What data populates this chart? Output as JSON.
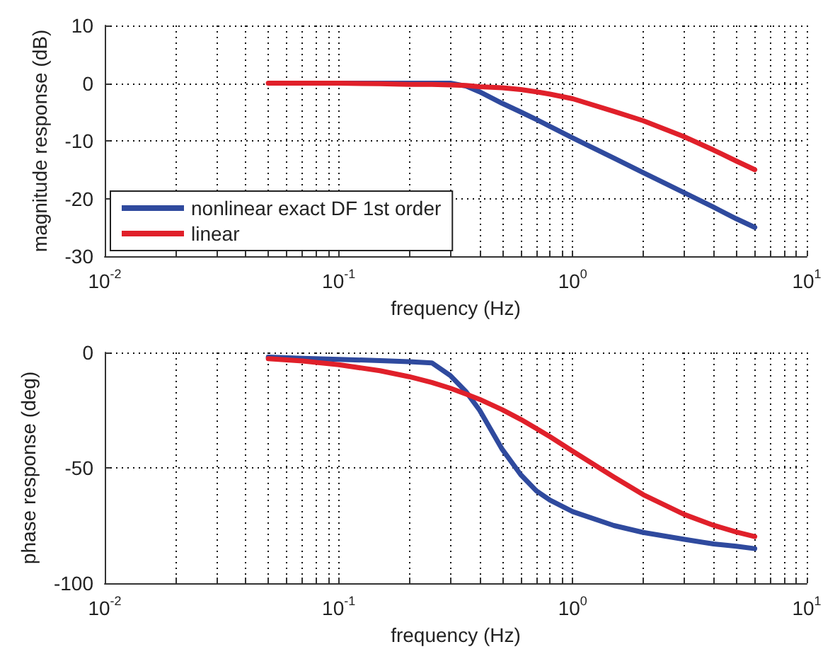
{
  "chart_data": [
    {
      "type": "line",
      "xlabel": "frequency (Hz)",
      "ylabel": "magnitude response (dB)",
      "log": "x",
      "grid": true,
      "legend": "bottom left",
      "line_style": "solid",
      "marker": "none",
      "xlim": [
        0.01,
        10
      ],
      "ylim": [
        -30,
        10
      ],
      "yticks": [
        -30,
        -20,
        -10,
        0,
        10
      ],
      "xticks": [
        {
          "value": 0.01,
          "label": "10$^{-2}$"
        },
        {
          "value": 0.02,
          "label": null
        },
        {
          "value": 0.03,
          "label": null
        },
        {
          "value": 0.04,
          "label": null
        },
        {
          "value": 0.05,
          "label": null
        },
        {
          "value": 0.06,
          "label": null
        },
        {
          "value": 0.07,
          "label": null
        },
        {
          "value": 0.08,
          "label": null
        },
        {
          "value": 0.09,
          "label": null
        },
        {
          "value": 0.1,
          "label": "10$^{-1}$"
        },
        {
          "value": 0.2,
          "label": null
        },
        {
          "value": 0.3,
          "label": null
        },
        {
          "value": 0.4,
          "label": null
        },
        {
          "value": 0.5,
          "label": null
        },
        {
          "value": 0.6,
          "label": null
        },
        {
          "value": 0.7,
          "label": null
        },
        {
          "value": 0.8,
          "label": null
        },
        {
          "value": 0.9,
          "label": null
        },
        {
          "value": 1,
          "label": "10$^{0}$"
        },
        {
          "value": 2,
          "label": null
        },
        {
          "value": 3,
          "label": null
        },
        {
          "value": 4,
          "label": null
        },
        {
          "value": 5,
          "label": null
        },
        {
          "value": 6,
          "label": null
        },
        {
          "value": 7,
          "label": null
        },
        {
          "value": 8,
          "label": null
        },
        {
          "value": 9,
          "label": null
        },
        {
          "value": 10,
          "label": "10$^{1}$"
        }
      ],
      "x": [
        0.05,
        0.07,
        0.1,
        0.15,
        0.2,
        0.25,
        0.3,
        0.35,
        0.4,
        0.5,
        0.6,
        0.7,
        0.8,
        1,
        1.5,
        2,
        3,
        4,
        5,
        6
      ],
      "series": [
        {
          "name": "nonlinear exact DF 1st order",
          "color": "#2f4a9e",
          "values": [
            null,
            null,
            0,
            0,
            0,
            0,
            0,
            -0.5,
            -1.5,
            -3.5,
            -5,
            -6.3,
            -7.5,
            -9.5,
            -13,
            -15.5,
            -19,
            -21.5,
            -23.5,
            -25
          ]
        },
        {
          "name": "linear",
          "color": "#e0202a",
          "values": [
            0,
            0,
            0,
            -0.1,
            -0.2,
            -0.2,
            -0.3,
            -0.4,
            -0.6,
            -0.8,
            -1.1,
            -1.5,
            -1.9,
            -2.7,
            -4.9,
            -6.5,
            -9.3,
            -11.6,
            -13.5,
            -15
          ]
        }
      ]
    },
    {
      "type": "line",
      "xlabel": "frequency (Hz)",
      "ylabel": "phase response (deg)",
      "log": "x",
      "grid": true,
      "line_style": "solid",
      "marker": "none",
      "xlim": [
        0.01,
        10
      ],
      "ylim": [
        -100,
        0
      ],
      "yticks": [
        -100,
        -50,
        0
      ],
      "xticks": [
        {
          "value": 0.01,
          "label": "10$^{-2}$"
        },
        {
          "value": 0.02,
          "label": null
        },
        {
          "value": 0.03,
          "label": null
        },
        {
          "value": 0.04,
          "label": null
        },
        {
          "value": 0.05,
          "label": null
        },
        {
          "value": 0.06,
          "label": null
        },
        {
          "value": 0.07,
          "label": null
        },
        {
          "value": 0.08,
          "label": null
        },
        {
          "value": 0.09,
          "label": null
        },
        {
          "value": 0.1,
          "label": "10$^{-1}$"
        },
        {
          "value": 0.2,
          "label": null
        },
        {
          "value": 0.3,
          "label": null
        },
        {
          "value": 0.4,
          "label": null
        },
        {
          "value": 0.5,
          "label": null
        },
        {
          "value": 0.6,
          "label": null
        },
        {
          "value": 0.7,
          "label": null
        },
        {
          "value": 0.8,
          "label": null
        },
        {
          "value": 0.9,
          "label": null
        },
        {
          "value": 1,
          "label": "10$^{0}$"
        },
        {
          "value": 2,
          "label": null
        },
        {
          "value": 3,
          "label": null
        },
        {
          "value": 4,
          "label": null
        },
        {
          "value": 5,
          "label": null
        },
        {
          "value": 6,
          "label": null
        },
        {
          "value": 7,
          "label": null
        },
        {
          "value": 8,
          "label": null
        },
        {
          "value": 9,
          "label": null
        },
        {
          "value": 10,
          "label": "10$^{1}$"
        }
      ],
      "x": [
        0.05,
        0.07,
        0.1,
        0.15,
        0.2,
        0.25,
        0.3,
        0.35,
        0.4,
        0.5,
        0.6,
        0.7,
        0.8,
        1,
        1.5,
        2,
        3,
        4,
        5,
        6
      ],
      "series": [
        {
          "color": "#2f4a9e",
          "values": [
            -2,
            -2.5,
            -3,
            -3.5,
            -4,
            -4.5,
            -10,
            -17,
            -25,
            -42,
            -53,
            -60,
            -64,
            -69,
            -75,
            -78,
            -81,
            -83,
            -84,
            -85
          ]
        },
        {
          "color": "#e0202a",
          "values": [
            -2.7,
            -3.7,
            -5.3,
            -7.9,
            -10.5,
            -13,
            -15.5,
            -18,
            -20.3,
            -24.8,
            -29,
            -33,
            -36.5,
            -42.8,
            -54,
            -61.6,
            -70.2,
            -74.9,
            -77.8,
            -79.8
          ]
        }
      ]
    }
  ]
}
